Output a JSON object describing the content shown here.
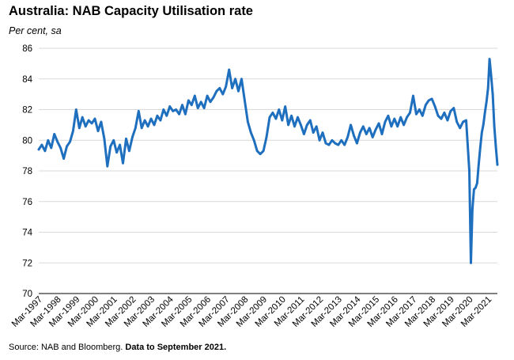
{
  "header": {
    "title": "Australia: NAB Capacity Utilisation rate",
    "subtitle": "Per cent, sa"
  },
  "footer": {
    "source": "Source: NAB and Bloomberg.",
    "note": "Data to September 2021."
  },
  "colors": {
    "line": "#1f6fbf",
    "grid": "#d9d9d9",
    "axis": "#000000"
  },
  "chart_data": {
    "type": "line",
    "title": "Australia: NAB Capacity Utilisation rate",
    "subtitle": "Per cent, sa",
    "xlabel": "",
    "ylabel": "",
    "ylim": [
      70,
      86
    ],
    "yticks": [
      70,
      72,
      74,
      76,
      78,
      80,
      82,
      84,
      86
    ],
    "xlim": [
      "1997-03",
      "2021-09"
    ],
    "xtick_labels": [
      "Mar-1997",
      "Mar-1998",
      "Mar-1999",
      "Mar-2000",
      "Mar-2001",
      "Mar-2002",
      "Mar-2003",
      "Mar-2004",
      "Mar-2005",
      "Mar-2006",
      "Mar-2007",
      "Mar-2008",
      "Mar-2009",
      "Mar-2010",
      "Mar-2011",
      "Mar-2012",
      "Mar-2013",
      "Mar-2014",
      "Mar-2015",
      "Mar-2016",
      "Mar-2017",
      "Mar-2018",
      "Mar-2019",
      "Mar-2020",
      "Mar-2021"
    ],
    "grid": "horizontal",
    "series": [
      {
        "points": [
          [
            "1997-03",
            79.4
          ],
          [
            "1997-05",
            79.7
          ],
          [
            "1997-07",
            79.3
          ],
          [
            "1997-09",
            80.0
          ],
          [
            "1997-11",
            79.5
          ],
          [
            "1998-01",
            80.4
          ],
          [
            "1998-03",
            79.9
          ],
          [
            "1998-05",
            79.5
          ],
          [
            "1998-07",
            78.8
          ],
          [
            "1998-09",
            79.6
          ],
          [
            "1998-11",
            79.9
          ],
          [
            "1999-01",
            80.6
          ],
          [
            "1999-03",
            82.0
          ],
          [
            "1999-05",
            80.8
          ],
          [
            "1999-07",
            81.5
          ],
          [
            "1999-09",
            80.9
          ],
          [
            "1999-11",
            81.3
          ],
          [
            "2000-01",
            81.1
          ],
          [
            "2000-03",
            81.4
          ],
          [
            "2000-05",
            80.6
          ],
          [
            "2000-07",
            81.2
          ],
          [
            "2000-09",
            80.1
          ],
          [
            "2000-11",
            78.3
          ],
          [
            "2001-01",
            79.6
          ],
          [
            "2001-03",
            80.0
          ],
          [
            "2001-05",
            79.2
          ],
          [
            "2001-07",
            79.7
          ],
          [
            "2001-09",
            78.5
          ],
          [
            "2001-11",
            80.1
          ],
          [
            "2002-01",
            79.3
          ],
          [
            "2002-03",
            80.2
          ],
          [
            "2002-05",
            80.8
          ],
          [
            "2002-07",
            81.9
          ],
          [
            "2002-09",
            80.8
          ],
          [
            "2002-11",
            81.3
          ],
          [
            "2003-01",
            80.9
          ],
          [
            "2003-03",
            81.4
          ],
          [
            "2003-05",
            81.0
          ],
          [
            "2003-07",
            81.6
          ],
          [
            "2003-09",
            81.3
          ],
          [
            "2003-11",
            82.0
          ],
          [
            "2004-01",
            81.6
          ],
          [
            "2004-03",
            82.2
          ],
          [
            "2004-05",
            81.9
          ],
          [
            "2004-07",
            82.0
          ],
          [
            "2004-09",
            81.7
          ],
          [
            "2004-11",
            82.3
          ],
          [
            "2005-01",
            81.7
          ],
          [
            "2005-03",
            82.6
          ],
          [
            "2005-05",
            82.3
          ],
          [
            "2005-07",
            82.9
          ],
          [
            "2005-09",
            82.1
          ],
          [
            "2005-11",
            82.5
          ],
          [
            "2006-01",
            82.1
          ],
          [
            "2006-03",
            82.9
          ],
          [
            "2006-05",
            82.5
          ],
          [
            "2006-07",
            82.8
          ],
          [
            "2006-09",
            83.2
          ],
          [
            "2006-11",
            83.4
          ],
          [
            "2007-01",
            83.0
          ],
          [
            "2007-03",
            83.5
          ],
          [
            "2007-05",
            84.6
          ],
          [
            "2007-07",
            83.4
          ],
          [
            "2007-09",
            84.0
          ],
          [
            "2007-11",
            83.2
          ],
          [
            "2008-01",
            84.0
          ],
          [
            "2008-03",
            82.6
          ],
          [
            "2008-05",
            81.2
          ],
          [
            "2008-07",
            80.5
          ],
          [
            "2008-09",
            80.0
          ],
          [
            "2008-11",
            79.3
          ],
          [
            "2009-01",
            79.1
          ],
          [
            "2009-03",
            79.3
          ],
          [
            "2009-05",
            80.2
          ],
          [
            "2009-07",
            81.5
          ],
          [
            "2009-09",
            81.8
          ],
          [
            "2009-11",
            81.4
          ],
          [
            "2010-01",
            82.0
          ],
          [
            "2010-03",
            81.3
          ],
          [
            "2010-05",
            82.2
          ],
          [
            "2010-07",
            81.0
          ],
          [
            "2010-09",
            81.6
          ],
          [
            "2010-11",
            80.9
          ],
          [
            "2011-01",
            81.5
          ],
          [
            "2011-03",
            81.0
          ],
          [
            "2011-05",
            80.4
          ],
          [
            "2011-07",
            81.0
          ],
          [
            "2011-09",
            81.3
          ],
          [
            "2011-11",
            80.5
          ],
          [
            "2012-01",
            80.9
          ],
          [
            "2012-03",
            80.0
          ],
          [
            "2012-05",
            80.5
          ],
          [
            "2012-07",
            79.8
          ],
          [
            "2012-09",
            79.7
          ],
          [
            "2012-11",
            80.0
          ],
          [
            "2013-01",
            79.8
          ],
          [
            "2013-03",
            79.7
          ],
          [
            "2013-05",
            80.0
          ],
          [
            "2013-07",
            79.7
          ],
          [
            "2013-09",
            80.2
          ],
          [
            "2013-11",
            81.0
          ],
          [
            "2014-01",
            80.3
          ],
          [
            "2014-03",
            79.8
          ],
          [
            "2014-05",
            80.5
          ],
          [
            "2014-07",
            80.9
          ],
          [
            "2014-09",
            80.4
          ],
          [
            "2014-11",
            80.8
          ],
          [
            "2015-01",
            80.2
          ],
          [
            "2015-03",
            80.7
          ],
          [
            "2015-05",
            81.1
          ],
          [
            "2015-07",
            80.4
          ],
          [
            "2015-09",
            81.2
          ],
          [
            "2015-11",
            81.6
          ],
          [
            "2016-01",
            80.9
          ],
          [
            "2016-03",
            81.4
          ],
          [
            "2016-05",
            80.9
          ],
          [
            "2016-07",
            81.5
          ],
          [
            "2016-09",
            81.0
          ],
          [
            "2016-11",
            81.5
          ],
          [
            "2017-01",
            81.8
          ],
          [
            "2017-03",
            82.9
          ],
          [
            "2017-05",
            81.7
          ],
          [
            "2017-07",
            82.0
          ],
          [
            "2017-09",
            81.6
          ],
          [
            "2017-11",
            82.3
          ],
          [
            "2018-01",
            82.6
          ],
          [
            "2018-03",
            82.7
          ],
          [
            "2018-05",
            82.2
          ],
          [
            "2018-07",
            81.6
          ],
          [
            "2018-09",
            81.4
          ],
          [
            "2018-11",
            81.8
          ],
          [
            "2019-01",
            81.3
          ],
          [
            "2019-03",
            81.9
          ],
          [
            "2019-05",
            82.1
          ],
          [
            "2019-07",
            81.2
          ],
          [
            "2019-09",
            80.8
          ],
          [
            "2019-11",
            81.2
          ],
          [
            "2020-01",
            81.3
          ],
          [
            "2020-03",
            78.0
          ],
          [
            "2020-04",
            72.0
          ],
          [
            "2020-05",
            75.5
          ],
          [
            "2020-06",
            76.8
          ],
          [
            "2020-07",
            76.9
          ],
          [
            "2020-08",
            77.2
          ],
          [
            "2020-09",
            78.4
          ],
          [
            "2020-10",
            79.5
          ],
          [
            "2020-11",
            80.5
          ],
          [
            "2020-12",
            81.0
          ],
          [
            "2021-01",
            81.8
          ],
          [
            "2021-02",
            82.5
          ],
          [
            "2021-03",
            83.4
          ],
          [
            "2021-04",
            85.3
          ],
          [
            "2021-05",
            84.2
          ],
          [
            "2021-06",
            83.0
          ],
          [
            "2021-07",
            80.9
          ],
          [
            "2021-08",
            79.6
          ],
          [
            "2021-09",
            78.4
          ]
        ]
      }
    ]
  }
}
